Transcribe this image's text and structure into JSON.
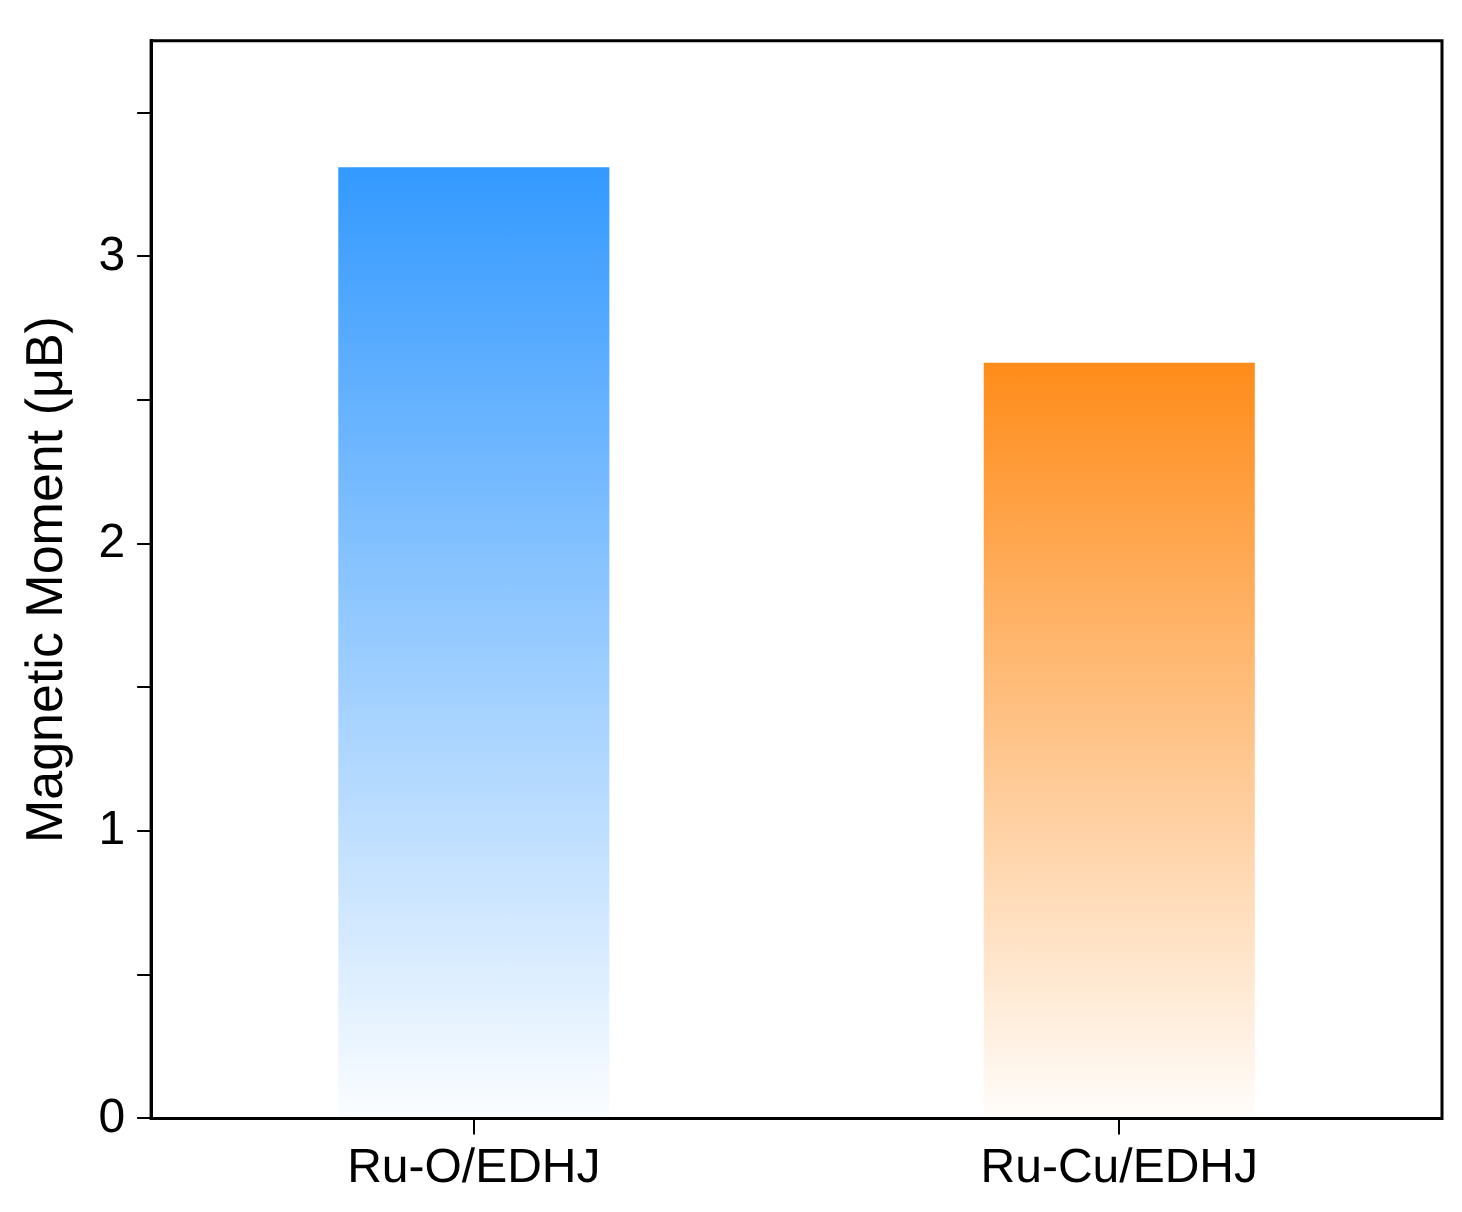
{
  "chart_data": {
    "type": "bar",
    "ylabel": "Magnetic Moment (μB)",
    "categories": [
      "Ru-O/EDHJ",
      "Ru-Cu/EDHJ"
    ],
    "values": [
      3.31,
      2.63
    ],
    "colors": [
      "#3399ff",
      "#ff8c1a"
    ],
    "ylim": [
      0,
      3.75
    ],
    "yticks": [
      0,
      {
        "value": 0.5,
        "label": null
      },
      1,
      {
        "value": 1.5,
        "label": null
      },
      2,
      {
        "value": 2.5,
        "label": null
      },
      3,
      {
        "value": 3.5,
        "label": null
      }
    ],
    "grid": false,
    "legend": false
  }
}
